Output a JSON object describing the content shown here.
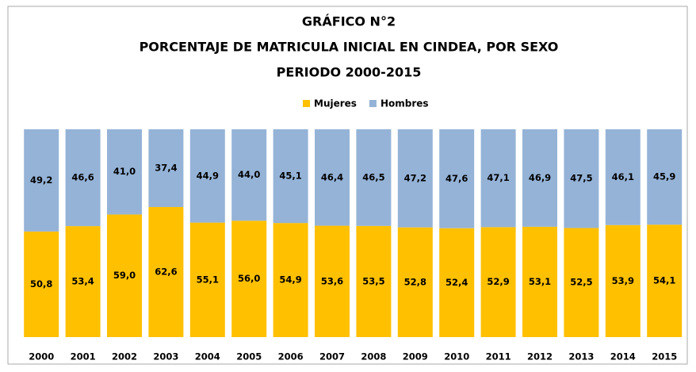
{
  "chart_data": {
    "type": "stacked_bar",
    "title": [
      "GRÁFICO N°2",
      "PORCENTAJE DE MATRICULA INICIAL EN CINDEA, POR SEXO",
      "PERIODO 2000-2015"
    ],
    "categories": [
      "2000",
      "2001",
      "2002",
      "2003",
      "2004",
      "2005",
      "2006",
      "2007",
      "2008",
      "2009",
      "2010",
      "2011",
      "2012",
      "2013",
      "2014",
      "2015"
    ],
    "series": [
      {
        "name": "Mujeres",
        "color": "#ffc000",
        "values": [
          50.8,
          53.4,
          59.0,
          62.6,
          55.1,
          56.0,
          54.9,
          53.6,
          53.5,
          52.8,
          52.4,
          52.9,
          53.1,
          52.5,
          53.9,
          54.1
        ],
        "value_labels": [
          "50,8",
          "53,4",
          "59,0",
          "62,6",
          "55,1",
          "56,0",
          "54,9",
          "53,6",
          "53,5",
          "52,8",
          "52,4",
          "52,9",
          "53,1",
          "52,5",
          "53,9",
          "54,1"
        ]
      },
      {
        "name": "Hombres",
        "color": "#95b3d7",
        "values": [
          49.2,
          46.6,
          41.0,
          37.4,
          44.9,
          44.0,
          45.1,
          46.4,
          46.5,
          47.2,
          47.6,
          47.1,
          46.9,
          47.5,
          46.1,
          45.9
        ],
        "value_labels": [
          "49,2",
          "46,6",
          "41,0",
          "37,4",
          "44,9",
          "44,0",
          "45,1",
          "46,4",
          "46,5",
          "47,2",
          "47,6",
          "47,1",
          "46,9",
          "47,5",
          "46,1",
          "45,9"
        ]
      }
    ],
    "ylim": [
      0,
      100
    ],
    "legend": "top"
  }
}
